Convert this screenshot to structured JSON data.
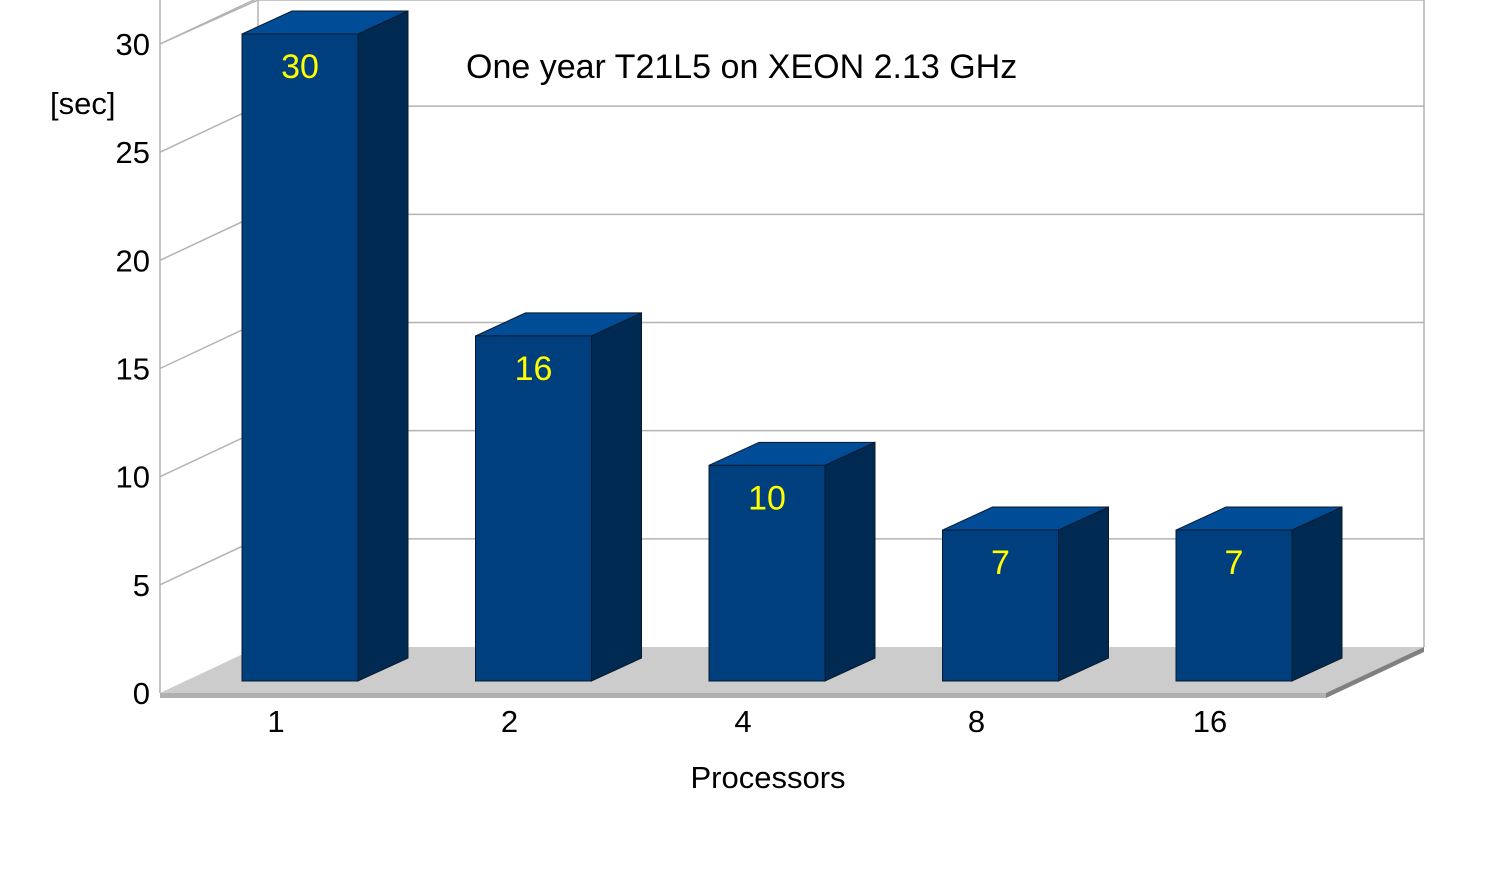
{
  "chart_data": {
    "type": "bar",
    "title": "One year T21L5 on XEON 2.13 GHz",
    "xlabel": "Processors",
    "ylabel": "[sec]",
    "categories": [
      "1",
      "2",
      "4",
      "8",
      "16"
    ],
    "values": [
      30,
      16,
      10,
      7,
      7
    ],
    "data_labels": [
      "30",
      "16",
      "10",
      "7",
      "7"
    ],
    "y_ticks": [
      "0",
      "5",
      "10",
      "15",
      "20",
      "25",
      "30"
    ],
    "ylim": [
      0,
      30
    ],
    "grid": true,
    "three_d": true,
    "colors": {
      "bar_front": "#003f7e",
      "bar_side": "#002a52",
      "bar_top": "#004c97",
      "bar_edge": "#0a1a2e",
      "data_label": "#ffff00",
      "gridline": "#b3b3b3",
      "floor": "#cccccc",
      "floor_edge": "#808080"
    }
  }
}
